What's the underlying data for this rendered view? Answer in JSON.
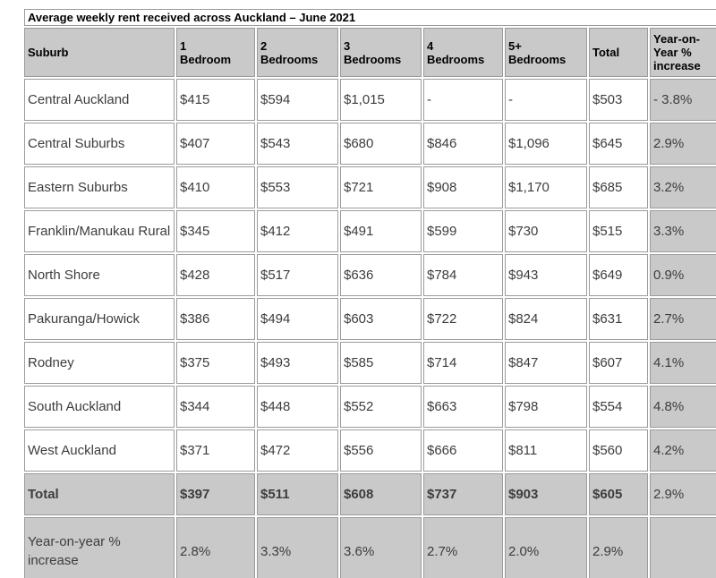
{
  "table": {
    "title": "Average weekly rent received across Auckland – June 2021",
    "columns": [
      "Suburb",
      "1\nBedroom",
      "2\nBedrooms",
      "3\nBedrooms",
      "4\nBedrooms",
      "5+\nBedrooms",
      "Total",
      "Year-on-Year % increase"
    ],
    "rows": [
      {
        "label": "Central Auckland",
        "style": "normal",
        "values": [
          "$415",
          "$594",
          "$1,015",
          "-",
          "-",
          "$503",
          "- 3.8%"
        ]
      },
      {
        "label": "Central Suburbs",
        "style": "normal",
        "values": [
          "$407",
          "$543",
          "$680",
          "$846",
          "$1,096",
          "$645",
          "2.9%"
        ]
      },
      {
        "label": "Eastern Suburbs",
        "style": "normal",
        "values": [
          "$410",
          "$553",
          "$721",
          "$908",
          "$1,170",
          "$685",
          "3.2%"
        ]
      },
      {
        "label": "Franklin/Manukau Rural",
        "style": "normal",
        "values": [
          "$345",
          "$412",
          "$491",
          "$599",
          "$730",
          "$515",
          "3.3%"
        ]
      },
      {
        "label": "North Shore",
        "style": "normal",
        "values": [
          "$428",
          "$517",
          "$636",
          "$784",
          "$943",
          "$649",
          "0.9%"
        ]
      },
      {
        "label": "Pakuranga/Howick",
        "style": "normal",
        "values": [
          "$386",
          "$494",
          "$603",
          "$722",
          "$824",
          "$631",
          "2.7%"
        ]
      },
      {
        "label": "Rodney",
        "style": "normal",
        "values": [
          "$375",
          "$493",
          "$585",
          "$714",
          "$847",
          "$607",
          "4.1%"
        ]
      },
      {
        "label": "South Auckland",
        "style": "normal",
        "values": [
          "$344",
          "$448",
          "$552",
          "$663",
          "$798",
          "$554",
          "4.8%"
        ]
      },
      {
        "label": "West Auckland",
        "style": "normal",
        "values": [
          "$371",
          "$472",
          "$556",
          "$666",
          "$811",
          "$560",
          "4.2%"
        ]
      },
      {
        "label": "Total",
        "style": "total",
        "values": [
          "$397",
          "$511",
          "$608",
          "$737",
          "$903",
          "$605",
          "2.9%"
        ]
      },
      {
        "label": "Year-on-year % increase",
        "style": "yoy",
        "values": [
          "2.8%",
          "3.3%",
          "3.6%",
          "2.7%",
          "2.0%",
          "2.9%",
          ""
        ]
      }
    ],
    "colors": {
      "header_bg": "#c9c9c9",
      "highlight_bg": "#c9c9c9",
      "cell_border": "#9b9b9b",
      "title_border": "#2b2b2b",
      "body_text": "#3d3d3d",
      "header_text": "#000000"
    }
  }
}
